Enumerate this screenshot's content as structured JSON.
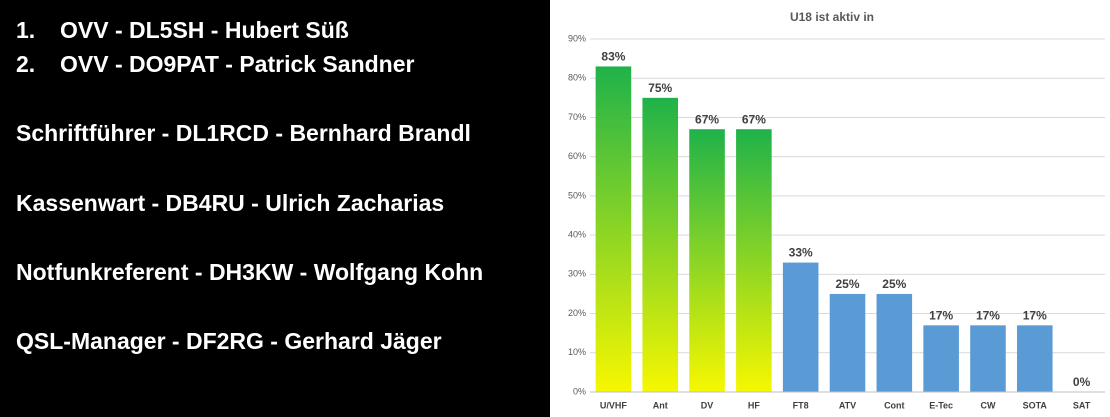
{
  "list": {
    "items": [
      {
        "number": "1.",
        "text": "OVV - DL5SH - Hubert Süß"
      },
      {
        "number": "2.",
        "text": "OVV - DO9PAT - Patrick Sandner"
      },
      {
        "text": "Schriftführer - DL1RCD - Bernhard Brandl"
      },
      {
        "text": "Kassenwart - DB4RU - Ulrich Zacharias"
      },
      {
        "text": "Notfunkreferent - DH3KW - Wolfgang Kohn"
      },
      {
        "text": "QSL-Manager - DF2RG - Gerhard Jäger"
      }
    ]
  },
  "chart_data": {
    "type": "bar",
    "title": "U18 ist aktiv in",
    "categories": [
      "U/VHF",
      "Ant",
      "DV",
      "HF",
      "FT8",
      "ATV",
      "Cont",
      "E-Tec",
      "CW",
      "SOTA",
      "SAT"
    ],
    "values": [
      83,
      75,
      67,
      67,
      33,
      25,
      25,
      17,
      17,
      17,
      0
    ],
    "value_labels": [
      "83%",
      "75%",
      "67%",
      "67%",
      "33%",
      "25%",
      "25%",
      "17%",
      "17%",
      "17%",
      "0%"
    ],
    "colors": [
      [
        "#1fb24a",
        "#f7f700"
      ],
      [
        "#1fb24a",
        "#f7f700"
      ],
      [
        "#1fb24a",
        "#f7f700"
      ],
      [
        "#1fb24a",
        "#f7f700"
      ],
      "#5b9bd5",
      "#5b9bd5",
      "#5b9bd5",
      "#5b9bd5",
      "#5b9bd5",
      "#5b9bd5",
      "#5b9bd5"
    ],
    "ylim": [
      0,
      90
    ],
    "yticks": [
      {
        "value": 0,
        "label": "0%"
      },
      {
        "value": 10,
        "label": "10%"
      },
      {
        "value": 20,
        "label": "20%"
      },
      {
        "value": 30,
        "label": "30%"
      },
      {
        "value": 40,
        "label": "40%"
      },
      {
        "value": 50,
        "label": "50%"
      },
      {
        "value": 60,
        "label": "60%"
      },
      {
        "value": 70,
        "label": "70%"
      },
      {
        "value": 80,
        "label": "80%"
      },
      {
        "value": 90,
        "label": "90%"
      }
    ],
    "grid": true
  }
}
